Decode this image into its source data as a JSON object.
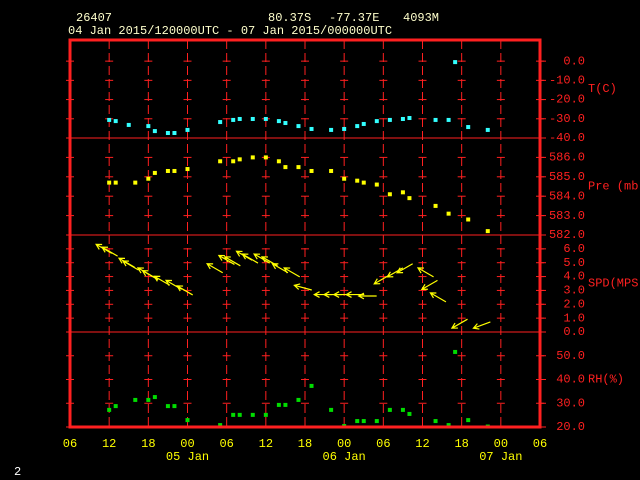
{
  "header": {
    "station": "26407",
    "lat": "80.37S",
    "lon": "-77.37E",
    "elev": "4093M",
    "period": "04 Jan 2015/120000UTC - 07 Jan 2015/000000UTC",
    "page": "2"
  },
  "chart_data": [
    {
      "type": "scatter",
      "label": "T(C)",
      "color": "#33ffff",
      "xlim": [
        6,
        78
      ],
      "ylim": [
        -40,
        11
      ],
      "yticks": [
        {
          "value": 0,
          "label": "0.0"
        },
        {
          "value": -10,
          "label": "-10.0"
        },
        {
          "value": -20,
          "label": "-20.0"
        },
        {
          "value": -30,
          "label": "-30.0"
        },
        {
          "value": -40,
          "label": "-40.0"
        }
      ],
      "x": [
        12,
        13,
        15,
        18,
        19,
        21,
        22,
        24,
        29,
        31,
        32,
        34,
        36,
        38,
        39,
        41,
        43,
        46,
        48,
        50,
        51,
        53,
        55,
        57,
        58,
        62,
        64,
        65,
        67,
        70
      ],
      "values": [
        -30.6,
        -31.2,
        -33.2,
        -33.8,
        -36.4,
        -37.4,
        -37.4,
        -35.8,
        -31.7,
        -30.6,
        -30.1,
        -30.1,
        -30.1,
        -31.2,
        -32.2,
        -33.8,
        -35.3,
        -35.8,
        -35.3,
        -33.8,
        -32.7,
        -31.2,
        -30.6,
        -30.1,
        -29.6,
        -30.6,
        -30.6,
        -0.5,
        -34.3,
        -35.8
      ]
    },
    {
      "type": "scatter",
      "label": "Pre (mb)",
      "color": "#ffff00",
      "xlim": [
        6,
        78
      ],
      "ylim": [
        582,
        587
      ],
      "yticks": [
        {
          "value": 586,
          "label": "586.0"
        },
        {
          "value": 585,
          "label": "585.0"
        },
        {
          "value": 584,
          "label": "584.0"
        },
        {
          "value": 583,
          "label": "583.0"
        },
        {
          "value": 582,
          "label": "582.0"
        }
      ],
      "x": [
        12,
        13,
        16,
        18,
        19,
        21,
        22,
        24,
        29,
        31,
        32,
        34,
        36,
        38,
        39,
        41,
        43,
        46,
        48,
        50,
        51,
        53,
        55,
        57,
        58,
        62,
        64,
        67,
        70
      ],
      "values": [
        584.7,
        584.7,
        584.7,
        584.9,
        585.2,
        585.3,
        585.3,
        585.4,
        585.8,
        585.8,
        585.9,
        586.0,
        586.0,
        585.8,
        585.5,
        585.5,
        585.3,
        585.3,
        584.9,
        584.8,
        584.7,
        584.6,
        584.1,
        584.2,
        583.9,
        583.5,
        583.1,
        582.8,
        582.2
      ]
    },
    {
      "type": "wind",
      "label": "SPD(MPS)",
      "color": "#ffff00",
      "xlim": [
        6,
        78
      ],
      "ylim": [
        0,
        7
      ],
      "yticks": [
        {
          "value": 6,
          "label": "6.0"
        },
        {
          "value": 5,
          "label": "5.0"
        },
        {
          "value": 4,
          "label": "4.0"
        },
        {
          "value": 3,
          "label": "3.0"
        },
        {
          "value": 2,
          "label": "2.0"
        },
        {
          "value": 1,
          "label": "1.0"
        },
        {
          "value": 0,
          "label": "0.0"
        }
      ],
      "x": [
        11.2,
        12.1,
        14.7,
        15.3,
        17.6,
        18.3,
        20.1,
        21.9,
        23.6,
        28.2,
        30.0,
        30.9,
        32.7,
        33.6,
        35.4,
        36.6,
        38.2,
        40.0,
        41.7,
        44.8,
        46.3,
        47.8,
        49.7,
        51.6,
        53.8,
        55.8,
        57.3,
        60.5,
        61.1,
        62.4,
        65.7,
        69.1
      ],
      "values": [
        6.0,
        5.8,
        5.0,
        4.8,
        4.3,
        4.1,
        3.7,
        3.4,
        3.0,
        4.6,
        5.2,
        5.1,
        5.5,
        5.3,
        5.3,
        5.1,
        4.6,
        4.3,
        3.2,
        2.7,
        2.7,
        2.7,
        2.7,
        2.6,
        3.8,
        4.3,
        4.6,
        4.3,
        3.4,
        2.5,
        0.6,
        0.5
      ],
      "directions": [
        150,
        150,
        150,
        150,
        150,
        150,
        150,
        150,
        150,
        150,
        150,
        150,
        150,
        150,
        150,
        150,
        150,
        150,
        165,
        180,
        180,
        180,
        180,
        180,
        210,
        210,
        210,
        150,
        210,
        150,
        210,
        200
      ]
    },
    {
      "type": "scatter",
      "label": "RH(%)",
      "color": "#00dd00",
      "xlim": [
        6,
        78
      ],
      "ylim": [
        20,
        60
      ],
      "yticks": [
        {
          "value": 50,
          "label": "50.0"
        },
        {
          "value": 40,
          "label": "40.0"
        },
        {
          "value": 30,
          "label": "30.0"
        },
        {
          "value": 20,
          "label": "20.0"
        }
      ],
      "x": [
        12,
        13,
        16,
        18,
        19,
        21,
        22,
        24,
        29,
        31,
        32,
        34,
        36,
        38,
        39,
        41,
        43,
        46,
        48,
        50,
        51,
        53,
        55,
        57,
        58,
        62,
        64,
        65,
        67,
        70
      ],
      "values": [
        27.2,
        28.8,
        31.4,
        31.4,
        32.6,
        28.8,
        28.8,
        22.9,
        20.8,
        25.1,
        25.1,
        25.1,
        25.1,
        29.3,
        29.3,
        31.4,
        37.3,
        27.2,
        20.4,
        22.5,
        22.5,
        22.5,
        27.2,
        27.2,
        25.5,
        22.5,
        20.8,
        51.6,
        22.9,
        20.2
      ],
      "xticks": [
        {
          "value": 6,
          "label": "06"
        },
        12,
        18,
        {
          "value": 24,
          "label": "00"
        },
        {
          "value": 30,
          "label": "06"
        },
        {
          "value": 36,
          "label": "12"
        },
        {
          "value": 42,
          "label": "18"
        },
        {
          "value": 48,
          "label": "00"
        },
        {
          "value": 54,
          "label": "06"
        },
        {
          "value": 60,
          "label": "12"
        },
        {
          "value": 66,
          "label": "18"
        },
        {
          "value": 72,
          "label": "00"
        },
        {
          "value": 78,
          "label": "06"
        }
      ],
      "date_ticks": [
        {
          "value": 24,
          "label": "05 Jan"
        },
        {
          "value": 48,
          "label": "06 Jan"
        },
        {
          "value": 72,
          "label": "07 Jan"
        }
      ]
    }
  ]
}
